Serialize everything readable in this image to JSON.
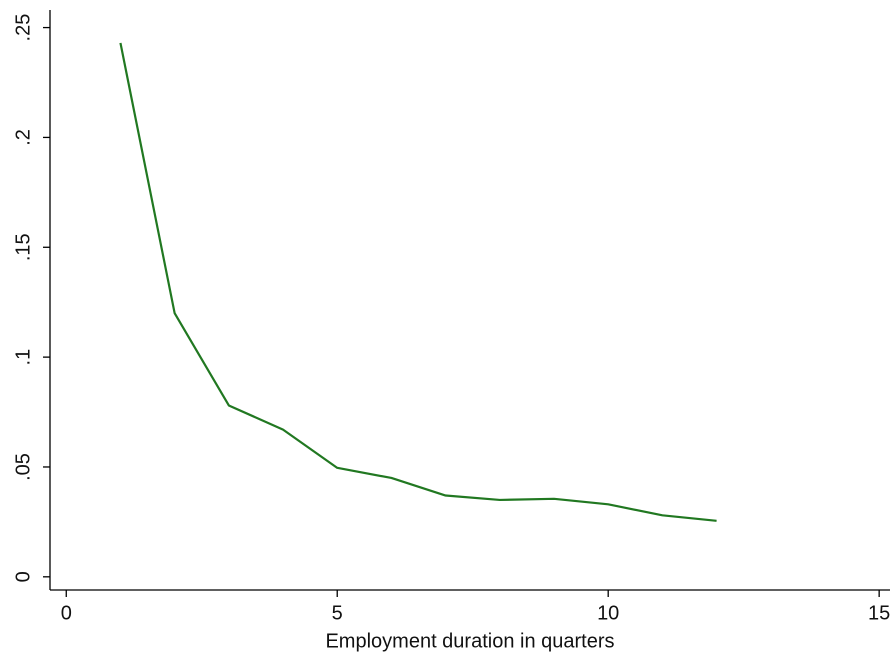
{
  "chart_data": {
    "type": "line",
    "x_label": "Employment duration in quarters",
    "x": [
      1,
      2,
      3,
      4,
      5,
      6,
      7,
      8,
      9,
      10,
      11,
      12
    ],
    "series": [
      {
        "color": "#217821",
        "values": [
          0.243,
          0.12,
          0.078,
          0.067,
          0.0496,
          0.045,
          0.037,
          0.035,
          0.0355,
          0.033,
          0.028,
          0.0255
        ]
      }
    ],
    "xlim": [
      -0.3,
      15.2
    ],
    "ylim": [
      -0.006,
      0.258
    ],
    "xticks": [
      0,
      5,
      10,
      15
    ],
    "yticks": [
      0,
      {
        "value": 0.05,
        "label": ".05"
      },
      {
        "value": 0.1,
        "label": ".1"
      },
      {
        "value": 0.15,
        "label": ".15"
      },
      {
        "value": 0.2,
        "label": ".2"
      },
      {
        "value": 0.25,
        "label": ".25"
      }
    ],
    "grid": false
  }
}
